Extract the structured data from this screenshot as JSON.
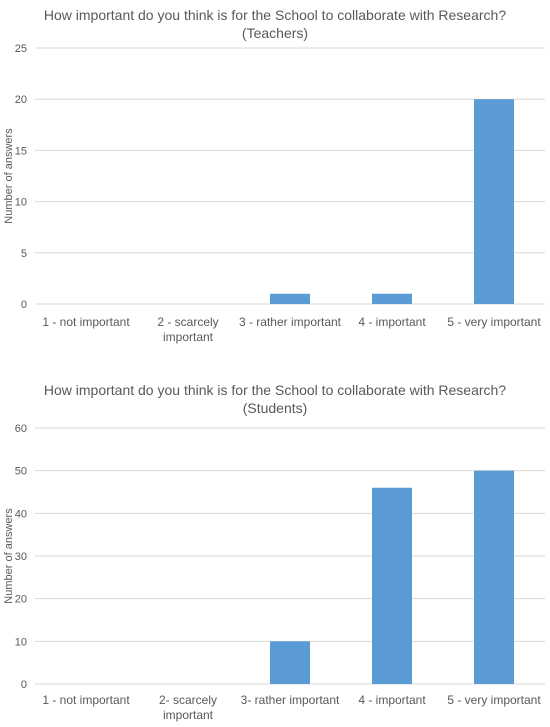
{
  "chart_data": [
    {
      "type": "bar",
      "title": "How important do you think is for the School to collaborate with Research?",
      "subtitle": "(Teachers)",
      "xlabel": "",
      "ylabel": "Number of answers",
      "categories": [
        "1 - not important",
        "2 - scarcely important",
        "3 - rather important",
        "4 - important",
        "5 - very important"
      ],
      "category_lines": [
        [
          "1 - not important"
        ],
        [
          "2 - scarcely",
          "important"
        ],
        [
          "3 - rather important"
        ],
        [
          "4 - important"
        ],
        [
          "5 - very important"
        ]
      ],
      "values": [
        0,
        0,
        1,
        1,
        20
      ],
      "ylim": [
        0,
        25
      ],
      "yticks": [
        0,
        5,
        10,
        15,
        20,
        25
      ],
      "grid": true,
      "bar_color": "#5b9bd5",
      "grid_color": "#d9d9d9"
    },
    {
      "type": "bar",
      "title": "How important do you think is for the School to collaborate with Research?",
      "subtitle": "(Students)",
      "xlabel": "",
      "ylabel": "Number of answers",
      "categories": [
        "1 - not important",
        "2- scarcely important",
        "3- rather important",
        "4 - important",
        "5 - very important"
      ],
      "category_lines": [
        [
          "1 - not important"
        ],
        [
          "2- scarcely",
          "important"
        ],
        [
          "3- rather important"
        ],
        [
          "4 - important"
        ],
        [
          "5 - very important"
        ]
      ],
      "values": [
        0,
        0,
        10,
        46,
        50
      ],
      "ylim": [
        0,
        60
      ],
      "yticks": [
        0,
        10,
        20,
        30,
        40,
        50,
        60
      ],
      "grid": true,
      "bar_color": "#5b9bd5",
      "grid_color": "#d9d9d9"
    }
  ]
}
